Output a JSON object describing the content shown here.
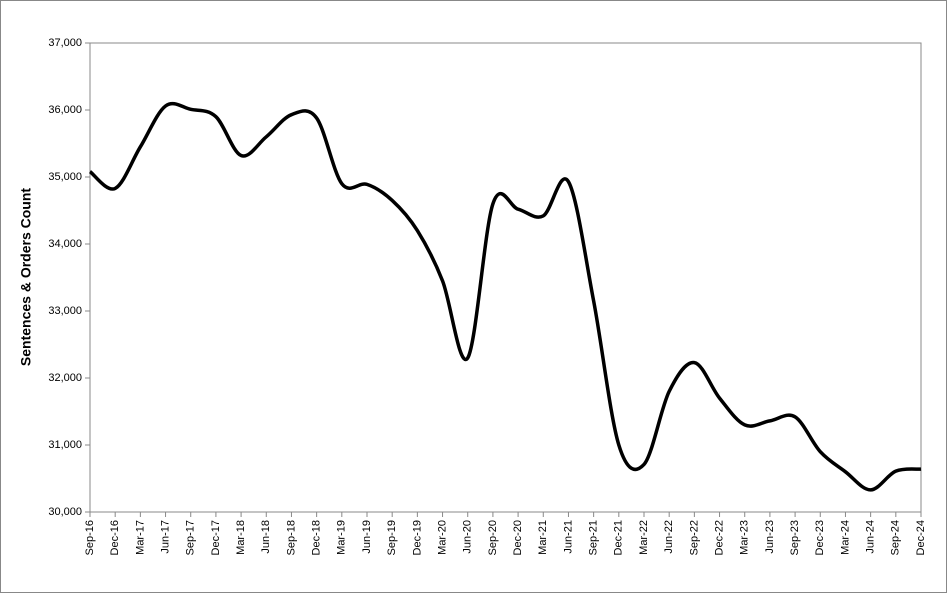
{
  "chart_data": {
    "type": "line",
    "smooth": true,
    "y_label": "Sentences & Orders Count",
    "categories": [
      "Sep-16",
      "Dec-16",
      "Mar-17",
      "Jun-17",
      "Sep-17",
      "Dec-17",
      "Mar-18",
      "Jun-18",
      "Sep-18",
      "Dec-18",
      "Mar-19",
      "Jun-19",
      "Sep-19",
      "Dec-19",
      "Mar-20",
      "Jun-20",
      "Sep-20",
      "Dec-20",
      "Mar-21",
      "Jun-21",
      "Sep-21",
      "Dec-21",
      "Mar-22",
      "Jun-22",
      "Sep-22",
      "Dec-22",
      "Mar-23",
      "Jun-23",
      "Sep-23",
      "Dec-23",
      "Mar-24",
      "Jun-24",
      "Sep-24",
      "Dec-24"
    ],
    "values": [
      35080,
      34830,
      35450,
      36060,
      36010,
      35900,
      35320,
      35600,
      35930,
      35880,
      34900,
      34890,
      34650,
      34200,
      33450,
      32300,
      34600,
      34520,
      34420,
      34930,
      33150,
      31000,
      30710,
      31800,
      32230,
      31700,
      31300,
      31360,
      31420,
      30900,
      30600,
      30330,
      30610,
      30640
    ],
    "color": "#000000",
    "ylim": [
      30000,
      37000
    ],
    "yticks": [
      {
        "value": 30000,
        "label": "30,000"
      },
      {
        "value": 31000,
        "label": "31,000"
      },
      {
        "value": 32000,
        "label": "32,000"
      },
      {
        "value": 33000,
        "label": "33,000"
      },
      {
        "value": 34000,
        "label": "34,000"
      },
      {
        "value": 35000,
        "label": "35,000"
      },
      {
        "value": 36000,
        "label": "36,000"
      },
      {
        "value": 37000,
        "label": "37,000"
      }
    ],
    "grid": false
  }
}
